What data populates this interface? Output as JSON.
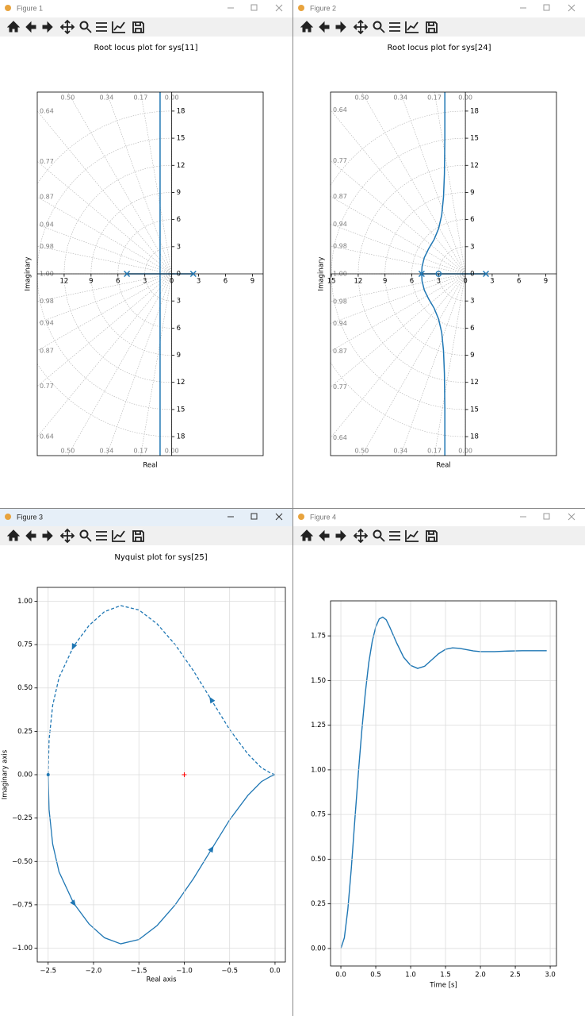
{
  "windows": [
    {
      "title": "Figure 1"
    },
    {
      "title": "Figure 2"
    },
    {
      "title": "Figure 3"
    },
    {
      "title": "Figure 4"
    }
  ],
  "chart_data": [
    {
      "type": "root_locus",
      "title": "Root locus plot for sys[11]",
      "xlabel": "Real",
      "ylabel": "Imaginary",
      "color": "#1f77b4",
      "xlim": [
        -15,
        10.2
      ],
      "ylim": [
        -20.1,
        20.1
      ],
      "xticks": [
        {
          "value": -12,
          "label": "12"
        },
        {
          "value": -9,
          "label": "9"
        },
        {
          "value": -6,
          "label": "6"
        },
        {
          "value": -3,
          "label": "3"
        },
        0,
        3,
        6,
        9
      ],
      "yticks": [
        {
          "value": -18,
          "label": "18"
        },
        {
          "value": -15,
          "label": "15"
        },
        {
          "value": -12,
          "label": "12"
        },
        {
          "value": -9,
          "label": "9"
        },
        {
          "value": -6,
          "label": "6"
        },
        {
          "value": -3,
          "label": "3"
        },
        0,
        3,
        6,
        9,
        12,
        15,
        18
      ],
      "damping": [
        {
          "value": 0,
          "label": "0.00"
        },
        {
          "value": 0.17,
          "label": "0.17"
        },
        {
          "value": 0.34,
          "label": "0.34"
        },
        {
          "value": 0.5,
          "label": "0.50"
        },
        {
          "value": 0.64,
          "label": "0.64"
        },
        {
          "value": 0.77,
          "label": "0.77"
        },
        {
          "value": 0.87,
          "label": "0.87"
        },
        {
          "value": 0.94,
          "label": "0.94"
        },
        {
          "value": 0.98,
          "label": "0.98"
        },
        {
          "value": 1,
          "label": "1.00"
        }
      ],
      "branches": [
        {
          "x": [
            -5,
            -1.3,
            -1.3
          ],
          "y": [
            0,
            0,
            20.1
          ]
        },
        {
          "x": [
            2.4,
            -1.3,
            -1.3
          ],
          "y": [
            0,
            0,
            -20.1
          ]
        }
      ],
      "poles": {
        "x": [
          -5,
          2.4
        ],
        "y": [
          0,
          0
        ]
      }
    },
    {
      "type": "root_locus",
      "title": "Root locus plot for sys[24]",
      "xlabel": "Real",
      "ylabel": "Imaginary",
      "color": "#1f77b4",
      "xlim": [
        -15.1,
        10.2
      ],
      "ylim": [
        -20.1,
        20.1
      ],
      "xticks": [
        {
          "value": -15,
          "label": "15"
        },
        {
          "value": -12,
          "label": "12"
        },
        {
          "value": -9,
          "label": "9"
        },
        {
          "value": -6,
          "label": "6"
        },
        {
          "value": -3,
          "label": "3"
        },
        0,
        3,
        6,
        9
      ],
      "yticks": [
        {
          "value": -18,
          "label": "18"
        },
        {
          "value": -15,
          "label": "15"
        },
        {
          "value": -12,
          "label": "12"
        },
        {
          "value": -9,
          "label": "9"
        },
        {
          "value": -6,
          "label": "6"
        },
        {
          "value": -3,
          "label": "3"
        },
        0,
        3,
        6,
        9,
        12,
        15,
        18
      ],
      "damping": [
        {
          "value": 0,
          "label": "0.00"
        },
        {
          "value": 0.17,
          "label": "0.17"
        },
        {
          "value": 0.34,
          "label": "0.34"
        },
        {
          "value": 0.5,
          "label": "0.50"
        },
        {
          "value": 0.64,
          "label": "0.64"
        },
        {
          "value": 0.77,
          "label": "0.77"
        },
        {
          "value": 0.87,
          "label": "0.87"
        },
        {
          "value": 0.94,
          "label": "0.94"
        },
        {
          "value": 0.98,
          "label": "0.98"
        },
        {
          "value": 1,
          "label": "1.00"
        }
      ],
      "branches": [
        {
          "x": [
            2.3,
            -4.9
          ],
          "y": [
            0,
            0
          ]
        },
        {
          "x": [
            -4.9,
            -4.85,
            -4.6,
            -4.1,
            -3.5,
            -3.0,
            -2.65,
            -2.45,
            -2.35,
            -2.3,
            -2.3
          ],
          "y": [
            0,
            0.8,
            1.8,
            2.8,
            3.8,
            5.0,
            6.5,
            8.5,
            11,
            15,
            20.1
          ]
        },
        {
          "x": [
            -4.9,
            -4.85,
            -4.6,
            -4.1,
            -3.5,
            -3.0,
            -2.65,
            -2.45,
            -2.35,
            -2.3,
            -2.3
          ],
          "y": [
            0,
            -0.8,
            -1.8,
            -2.8,
            -3.8,
            -5.0,
            -6.5,
            -8.5,
            -11,
            -15,
            -20.1
          ]
        }
      ],
      "poles": {
        "x": [
          -4.9,
          2.3
        ],
        "y": [
          0,
          0
        ]
      },
      "zeros": {
        "x": [
          -3
        ],
        "y": [
          0
        ]
      }
    },
    {
      "type": "nyquist",
      "title": "Nyquist plot for sys[25]",
      "xlabel": "Real axis",
      "ylabel": "Imaginary axis",
      "color": "#1f77b4",
      "grid": true,
      "xlim": [
        -2.62,
        0.114
      ],
      "ylim": [
        -1.08,
        1.08
      ],
      "xticks": [
        {
          "value": -2.5,
          "label": "−2.5"
        },
        {
          "value": -2,
          "label": "−2.0"
        },
        {
          "value": -1.5,
          "label": "−1.5"
        },
        {
          "value": -1,
          "label": "−1.0"
        },
        {
          "value": -0.5,
          "label": "−0.5"
        },
        {
          "value": 0,
          "label": "0.0"
        }
      ],
      "yticks": [
        {
          "value": -1,
          "label": "−1.00"
        },
        {
          "value": -0.75,
          "label": "−0.75"
        },
        {
          "value": -0.5,
          "label": "−0.50"
        },
        {
          "value": -0.25,
          "label": "−0.25"
        },
        {
          "value": 0,
          "label": "0.00"
        },
        0.25,
        {
          "value": 0.5,
          "label": "0.50"
        },
        0.75,
        {
          "value": 1,
          "label": "1.00"
        }
      ],
      "series": [
        {
          "style": "solid",
          "x": [
            -2.5,
            -2.49,
            -2.45,
            -2.38,
            -2.22,
            -2.05,
            -1.88,
            -1.7,
            -1.5,
            -1.3,
            -1.1,
            -0.9,
            -0.7,
            -0.5,
            -0.3,
            -0.15,
            -0.05,
            0
          ],
          "y": [
            0,
            -0.2,
            -0.4,
            -0.56,
            -0.74,
            -0.86,
            -0.94,
            -0.975,
            -0.95,
            -0.87,
            -0.75,
            -0.6,
            -0.43,
            -0.26,
            -0.12,
            -0.04,
            -0.01,
            0
          ]
        },
        {
          "style": "dashed",
          "x": [
            0,
            -0.05,
            -0.15,
            -0.3,
            -0.5,
            -0.7,
            -0.9,
            -1.1,
            -1.3,
            -1.5,
            -1.7,
            -1.88,
            -2.05,
            -2.22,
            -2.38,
            -2.45,
            -2.49,
            -2.5
          ],
          "y": [
            0,
            0.01,
            0.04,
            0.12,
            0.26,
            0.43,
            0.6,
            0.75,
            0.87,
            0.95,
            0.975,
            0.94,
            0.86,
            0.74,
            0.56,
            0.4,
            0.2,
            0
          ]
        }
      ],
      "critical_point": {
        "x": -1,
        "y": 0,
        "color": "#ff0000"
      }
    },
    {
      "type": "line",
      "xlabel": "Time [s]",
      "color": "#1f77b4",
      "grid": true,
      "xlim": [
        -0.148,
        3.09
      ],
      "ylim": [
        -0.098,
        1.946
      ],
      "xticks": [
        {
          "value": 0,
          "label": "0.0"
        },
        0.5,
        {
          "value": 1,
          "label": "1.0"
        },
        1.5,
        {
          "value": 2,
          "label": "2.0"
        },
        2.5,
        {
          "value": 3,
          "label": "3.0"
        }
      ],
      "yticks": [
        {
          "value": 0,
          "label": "0.00"
        },
        0.25,
        {
          "value": 0.5,
          "label": "0.50"
        },
        0.75,
        {
          "value": 1,
          "label": "1.00"
        },
        1.25,
        {
          "value": 1.5,
          "label": "1.50"
        },
        1.75
      ],
      "x": [
        0,
        0.05,
        0.1,
        0.15,
        0.2,
        0.25,
        0.3,
        0.35,
        0.4,
        0.45,
        0.5,
        0.55,
        0.6,
        0.65,
        0.7,
        0.8,
        0.9,
        1.0,
        1.1,
        1.2,
        1.3,
        1.4,
        1.5,
        1.6,
        1.7,
        1.8,
        1.9,
        2.0,
        2.2,
        2.4,
        2.6,
        2.8,
        2.95
      ],
      "values": [
        0,
        0.06,
        0.22,
        0.45,
        0.72,
        0.98,
        1.22,
        1.43,
        1.6,
        1.72,
        1.8,
        1.845,
        1.855,
        1.84,
        1.8,
        1.71,
        1.63,
        1.585,
        1.568,
        1.58,
        1.615,
        1.65,
        1.675,
        1.683,
        1.68,
        1.673,
        1.666,
        1.662,
        1.662,
        1.665,
        1.667,
        1.667,
        1.667
      ]
    }
  ]
}
